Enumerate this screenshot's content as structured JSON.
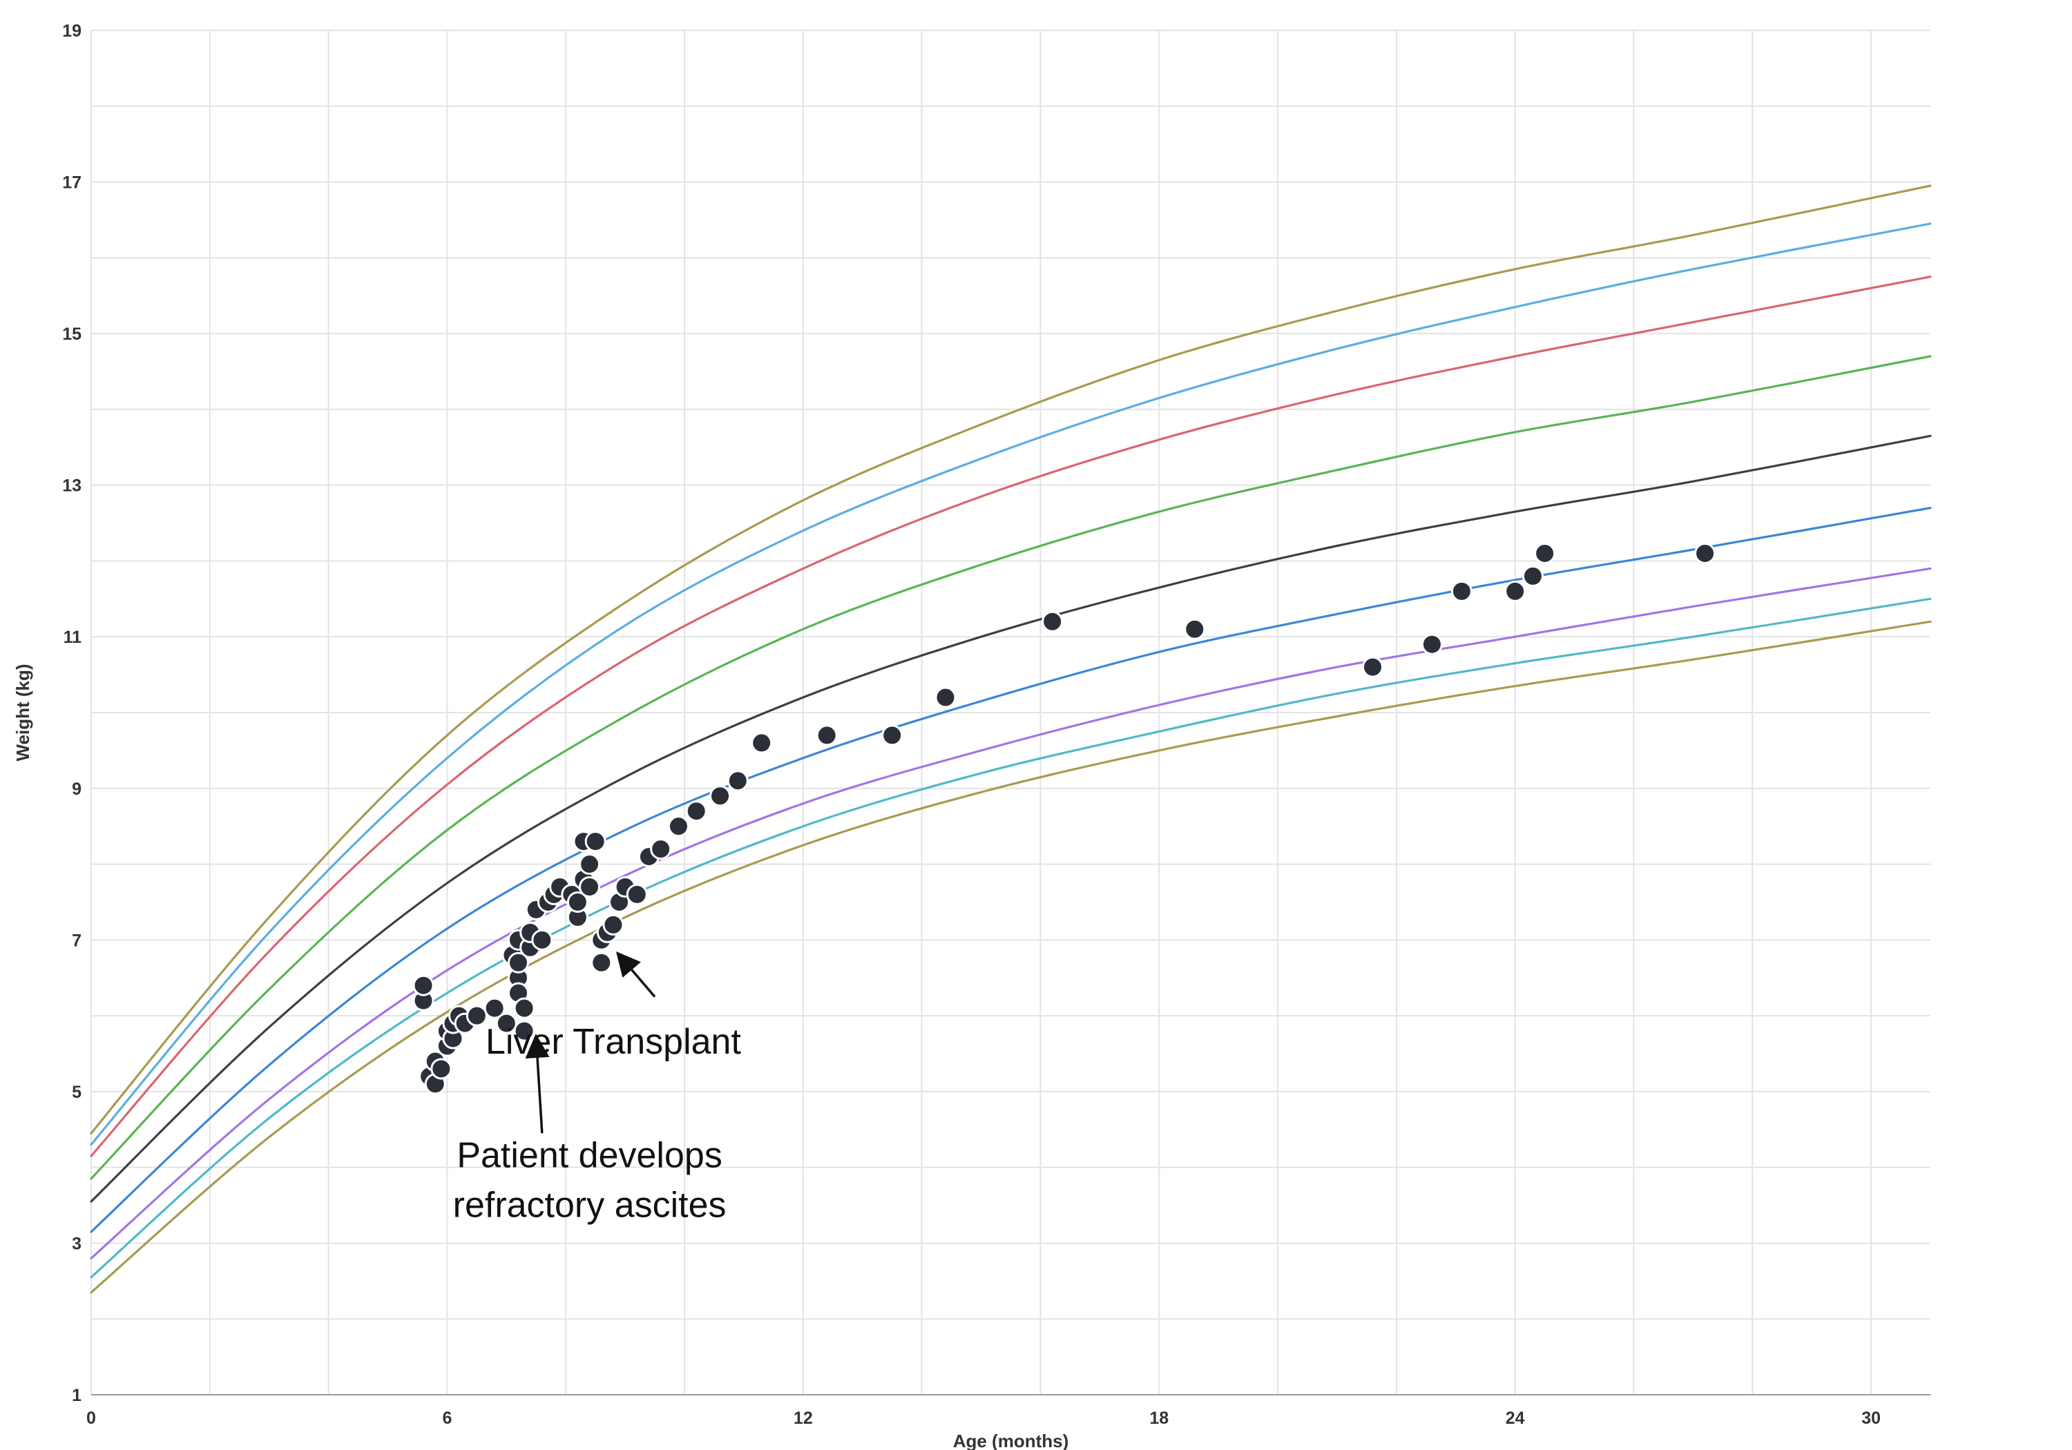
{
  "chart_data": {
    "type": "line",
    "xlabel": "Age (months)",
    "ylabel": "Weight (kg)",
    "xlim": [
      0,
      31
    ],
    "ylim": [
      1,
      19
    ],
    "x_ticks": [
      0,
      6,
      12,
      18,
      24,
      30
    ],
    "y_ticks": [
      1,
      3,
      5,
      7,
      9,
      11,
      13,
      15,
      17,
      19
    ],
    "x_gridlines_every": 2,
    "y_gridlines_every": 1,
    "grid": true,
    "legend": "none",
    "series": [
      {
        "color": "#a99a4f",
        "x": [
          0,
          3,
          6,
          9,
          12,
          15,
          18,
          21,
          24,
          27,
          31
        ],
        "y": [
          4.45,
          7.3,
          9.7,
          11.45,
          12.8,
          13.8,
          14.65,
          15.3,
          15.85,
          16.3,
          16.95
        ]
      },
      {
        "color": "#5aaee0",
        "x": [
          0,
          3,
          6,
          9,
          12,
          15,
          18,
          21,
          24,
          27,
          31
        ],
        "y": [
          4.3,
          7.1,
          9.4,
          11.15,
          12.4,
          13.35,
          14.15,
          14.8,
          15.35,
          15.85,
          16.45
        ]
      },
      {
        "color": "#d9656f",
        "x": [
          0,
          3,
          6,
          9,
          12,
          15,
          18,
          21,
          24,
          27,
          31
        ],
        "y": [
          4.15,
          6.85,
          9.05,
          10.7,
          11.9,
          12.85,
          13.6,
          14.2,
          14.7,
          15.15,
          15.75
        ]
      },
      {
        "color": "#58b552",
        "x": [
          0,
          3,
          6,
          9,
          12,
          15,
          18,
          21,
          24,
          27,
          31
        ],
        "y": [
          3.85,
          6.35,
          8.45,
          9.95,
          11.1,
          11.95,
          12.65,
          13.2,
          13.7,
          14.1,
          14.7
        ]
      },
      {
        "color": "#3a3f48",
        "x": [
          0,
          3,
          6,
          9,
          12,
          15,
          18,
          21,
          24,
          27,
          31
        ],
        "y": [
          3.55,
          5.85,
          7.75,
          9.15,
          10.2,
          11.0,
          11.65,
          12.2,
          12.65,
          13.05,
          13.65
        ]
      },
      {
        "color": "#3a86d6",
        "x": [
          0,
          3,
          6,
          9,
          12,
          15,
          18,
          21,
          24,
          27,
          31
        ],
        "y": [
          3.15,
          5.35,
          7.15,
          8.45,
          9.4,
          10.15,
          10.8,
          11.3,
          11.75,
          12.15,
          12.7
        ]
      },
      {
        "color": "#a274e6",
        "x": [
          0,
          3,
          6,
          9,
          12,
          15,
          18,
          21,
          24,
          27,
          31
        ],
        "y": [
          2.8,
          4.9,
          6.6,
          7.85,
          8.8,
          9.5,
          10.1,
          10.6,
          11.0,
          11.4,
          11.9
        ]
      },
      {
        "color": "#4fb9c7",
        "x": [
          0,
          3,
          6,
          9,
          12,
          15,
          18,
          21,
          24,
          27,
          31
        ],
        "y": [
          2.55,
          4.65,
          6.3,
          7.55,
          8.5,
          9.2,
          9.75,
          10.25,
          10.65,
          11.0,
          11.5
        ]
      },
      {
        "color": "#a99a4f",
        "x": [
          0,
          3,
          6,
          9,
          12,
          15,
          18,
          21,
          24,
          27,
          31
        ],
        "y": [
          2.35,
          4.4,
          6.05,
          7.3,
          8.25,
          8.95,
          9.5,
          9.95,
          10.35,
          10.7,
          11.2
        ]
      }
    ],
    "points": {
      "color": "#2b2f38",
      "x": [
        5.6,
        5.6,
        5.7,
        5.8,
        5.8,
        5.9,
        6.0,
        6.0,
        6.1,
        6.1,
        6.2,
        6.3,
        6.5,
        6.8,
        7.0,
        7.2,
        7.1,
        7.2,
        7.2,
        7.3,
        7.3,
        7.2,
        7.4,
        7.4,
        7.5,
        7.6,
        7.7,
        7.8,
        7.9,
        8.1,
        8.2,
        8.2,
        8.3,
        8.3,
        8.4,
        8.4,
        8.5,
        8.6,
        8.6,
        8.7,
        8.8,
        8.9,
        9.0,
        9.2,
        9.4,
        9.6,
        9.9,
        10.2,
        10.6,
        10.9,
        11.3,
        12.4,
        13.5,
        14.4,
        16.2,
        18.6,
        21.6,
        22.6,
        23.1,
        24.0,
        24.3,
        24.5,
        27.2
      ],
      "y": [
        6.2,
        6.4,
        5.2,
        5.1,
        5.4,
        5.3,
        5.6,
        5.8,
        5.7,
        5.9,
        6.0,
        5.9,
        6.0,
        6.1,
        5.9,
        6.5,
        6.8,
        6.7,
        6.3,
        6.1,
        5.8,
        7.0,
        6.9,
        7.1,
        7.4,
        7.0,
        7.5,
        7.6,
        7.7,
        7.6,
        7.3,
        7.5,
        7.8,
        8.3,
        7.7,
        8.0,
        8.3,
        7.0,
        6.7,
        7.1,
        7.2,
        7.5,
        7.7,
        7.6,
        8.1,
        8.2,
        8.5,
        8.7,
        8.9,
        9.1,
        9.6,
        9.7,
        9.7,
        10.2,
        11.2,
        11.1,
        10.6,
        10.9,
        11.6,
        11.6,
        11.8,
        12.1,
        12.1
      ]
    },
    "annotations": [
      {
        "lines": [
          "Liver Transplant"
        ],
        "text_x": 8.8,
        "text_y": 5.5,
        "arrow_from_x": 9.5,
        "arrow_from_y": 6.25,
        "arrow_to_x": 8.9,
        "arrow_to_y": 6.8
      },
      {
        "lines": [
          "Patient develops",
          "refractory ascites"
        ],
        "text_x": 8.4,
        "text_y": 4.0,
        "arrow_from_x": 7.6,
        "arrow_from_y": 4.45,
        "arrow_to_x": 7.5,
        "arrow_to_y": 5.7
      }
    ]
  }
}
